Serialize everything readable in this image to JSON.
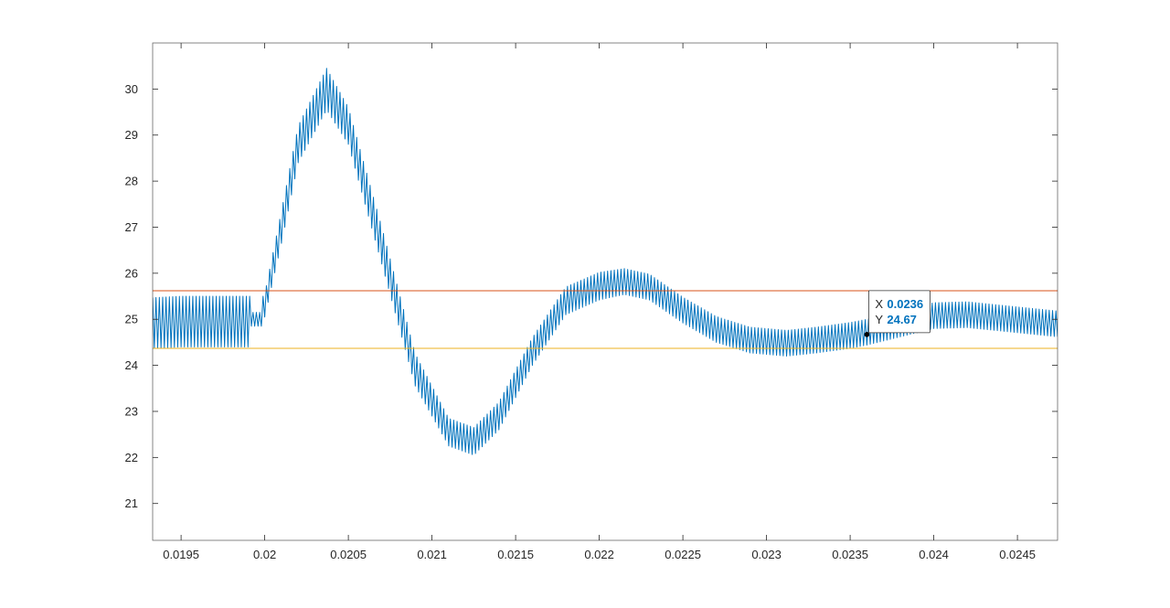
{
  "chart_data": {
    "type": "line",
    "title": "",
    "xlabel": "",
    "ylabel": "",
    "xlim": [
      0.01933,
      0.02474
    ],
    "ylim": [
      20.2,
      31.0
    ],
    "grid": false,
    "x_ticks": [
      {
        "value": 0.0195,
        "label": "0.0195"
      },
      {
        "value": 0.02,
        "label": "0.02"
      },
      {
        "value": 0.0205,
        "label": "0.0205"
      },
      {
        "value": 0.021,
        "label": "0.021"
      },
      {
        "value": 0.0215,
        "label": "0.0215"
      },
      {
        "value": 0.022,
        "label": "0.022"
      },
      {
        "value": 0.0225,
        "label": "0.0225"
      },
      {
        "value": 0.023,
        "label": "0.023"
      },
      {
        "value": 0.0235,
        "label": "0.0235"
      },
      {
        "value": 0.024,
        "label": "0.024"
      },
      {
        "value": 0.0245,
        "label": "0.0245"
      }
    ],
    "y_ticks": [
      {
        "value": 21,
        "label": "21"
      },
      {
        "value": 22,
        "label": "22"
      },
      {
        "value": 23,
        "label": "23"
      },
      {
        "value": 24,
        "label": "24"
      },
      {
        "value": 25,
        "label": "25"
      },
      {
        "value": 26,
        "label": "26"
      },
      {
        "value": 27,
        "label": "27"
      },
      {
        "value": 28,
        "label": "28"
      },
      {
        "value": 29,
        "label": "29"
      },
      {
        "value": 30,
        "label": "30"
      }
    ],
    "series": [
      {
        "color": "#0072BD",
        "ripple_period": 2e-05,
        "envelope": {
          "x": [
            0.01933,
            0.0195,
            0.01991,
            0.01992,
            0.01998,
            0.01999,
            0.02,
            0.0201,
            0.0202,
            0.02037,
            0.0205,
            0.0207,
            0.0209,
            0.0211,
            0.02125,
            0.0214,
            0.0216,
            0.0218,
            0.022,
            0.02215,
            0.0223,
            0.0225,
            0.0227,
            0.0229,
            0.02312,
            0.0233,
            0.0235,
            0.0236,
            0.0238,
            0.024,
            0.0242,
            0.02474
          ],
          "mean": [
            24.92,
            24.95,
            24.95,
            25.0,
            25.0,
            24.95,
            25.3,
            27.0,
            28.8,
            30.0,
            29.2,
            26.6,
            23.9,
            22.55,
            22.35,
            22.9,
            24.3,
            25.4,
            25.72,
            25.82,
            25.7,
            25.2,
            24.78,
            24.55,
            24.48,
            24.55,
            24.65,
            24.72,
            24.9,
            25.08,
            25.1,
            24.9
          ],
          "amp": [
            0.55,
            0.55,
            0.55,
            0.15,
            0.15,
            0.55,
            0.25,
            0.35,
            0.4,
            0.45,
            0.4,
            0.4,
            0.35,
            0.3,
            0.3,
            0.3,
            0.3,
            0.3,
            0.3,
            0.28,
            0.28,
            0.28,
            0.28,
            0.28,
            0.28,
            0.28,
            0.28,
            0.28,
            0.28,
            0.28,
            0.28,
            0.28
          ]
        }
      },
      {
        "color": "#D95319",
        "type": "hline",
        "y": 25.62
      },
      {
        "color": "#EDB120",
        "type": "hline",
        "y": 24.37
      }
    ],
    "datatip": {
      "x_key": "X",
      "x_value": "0.0236",
      "y_key": "Y",
      "y_value": "24.67",
      "x": 0.0236,
      "y": 24.67
    }
  }
}
